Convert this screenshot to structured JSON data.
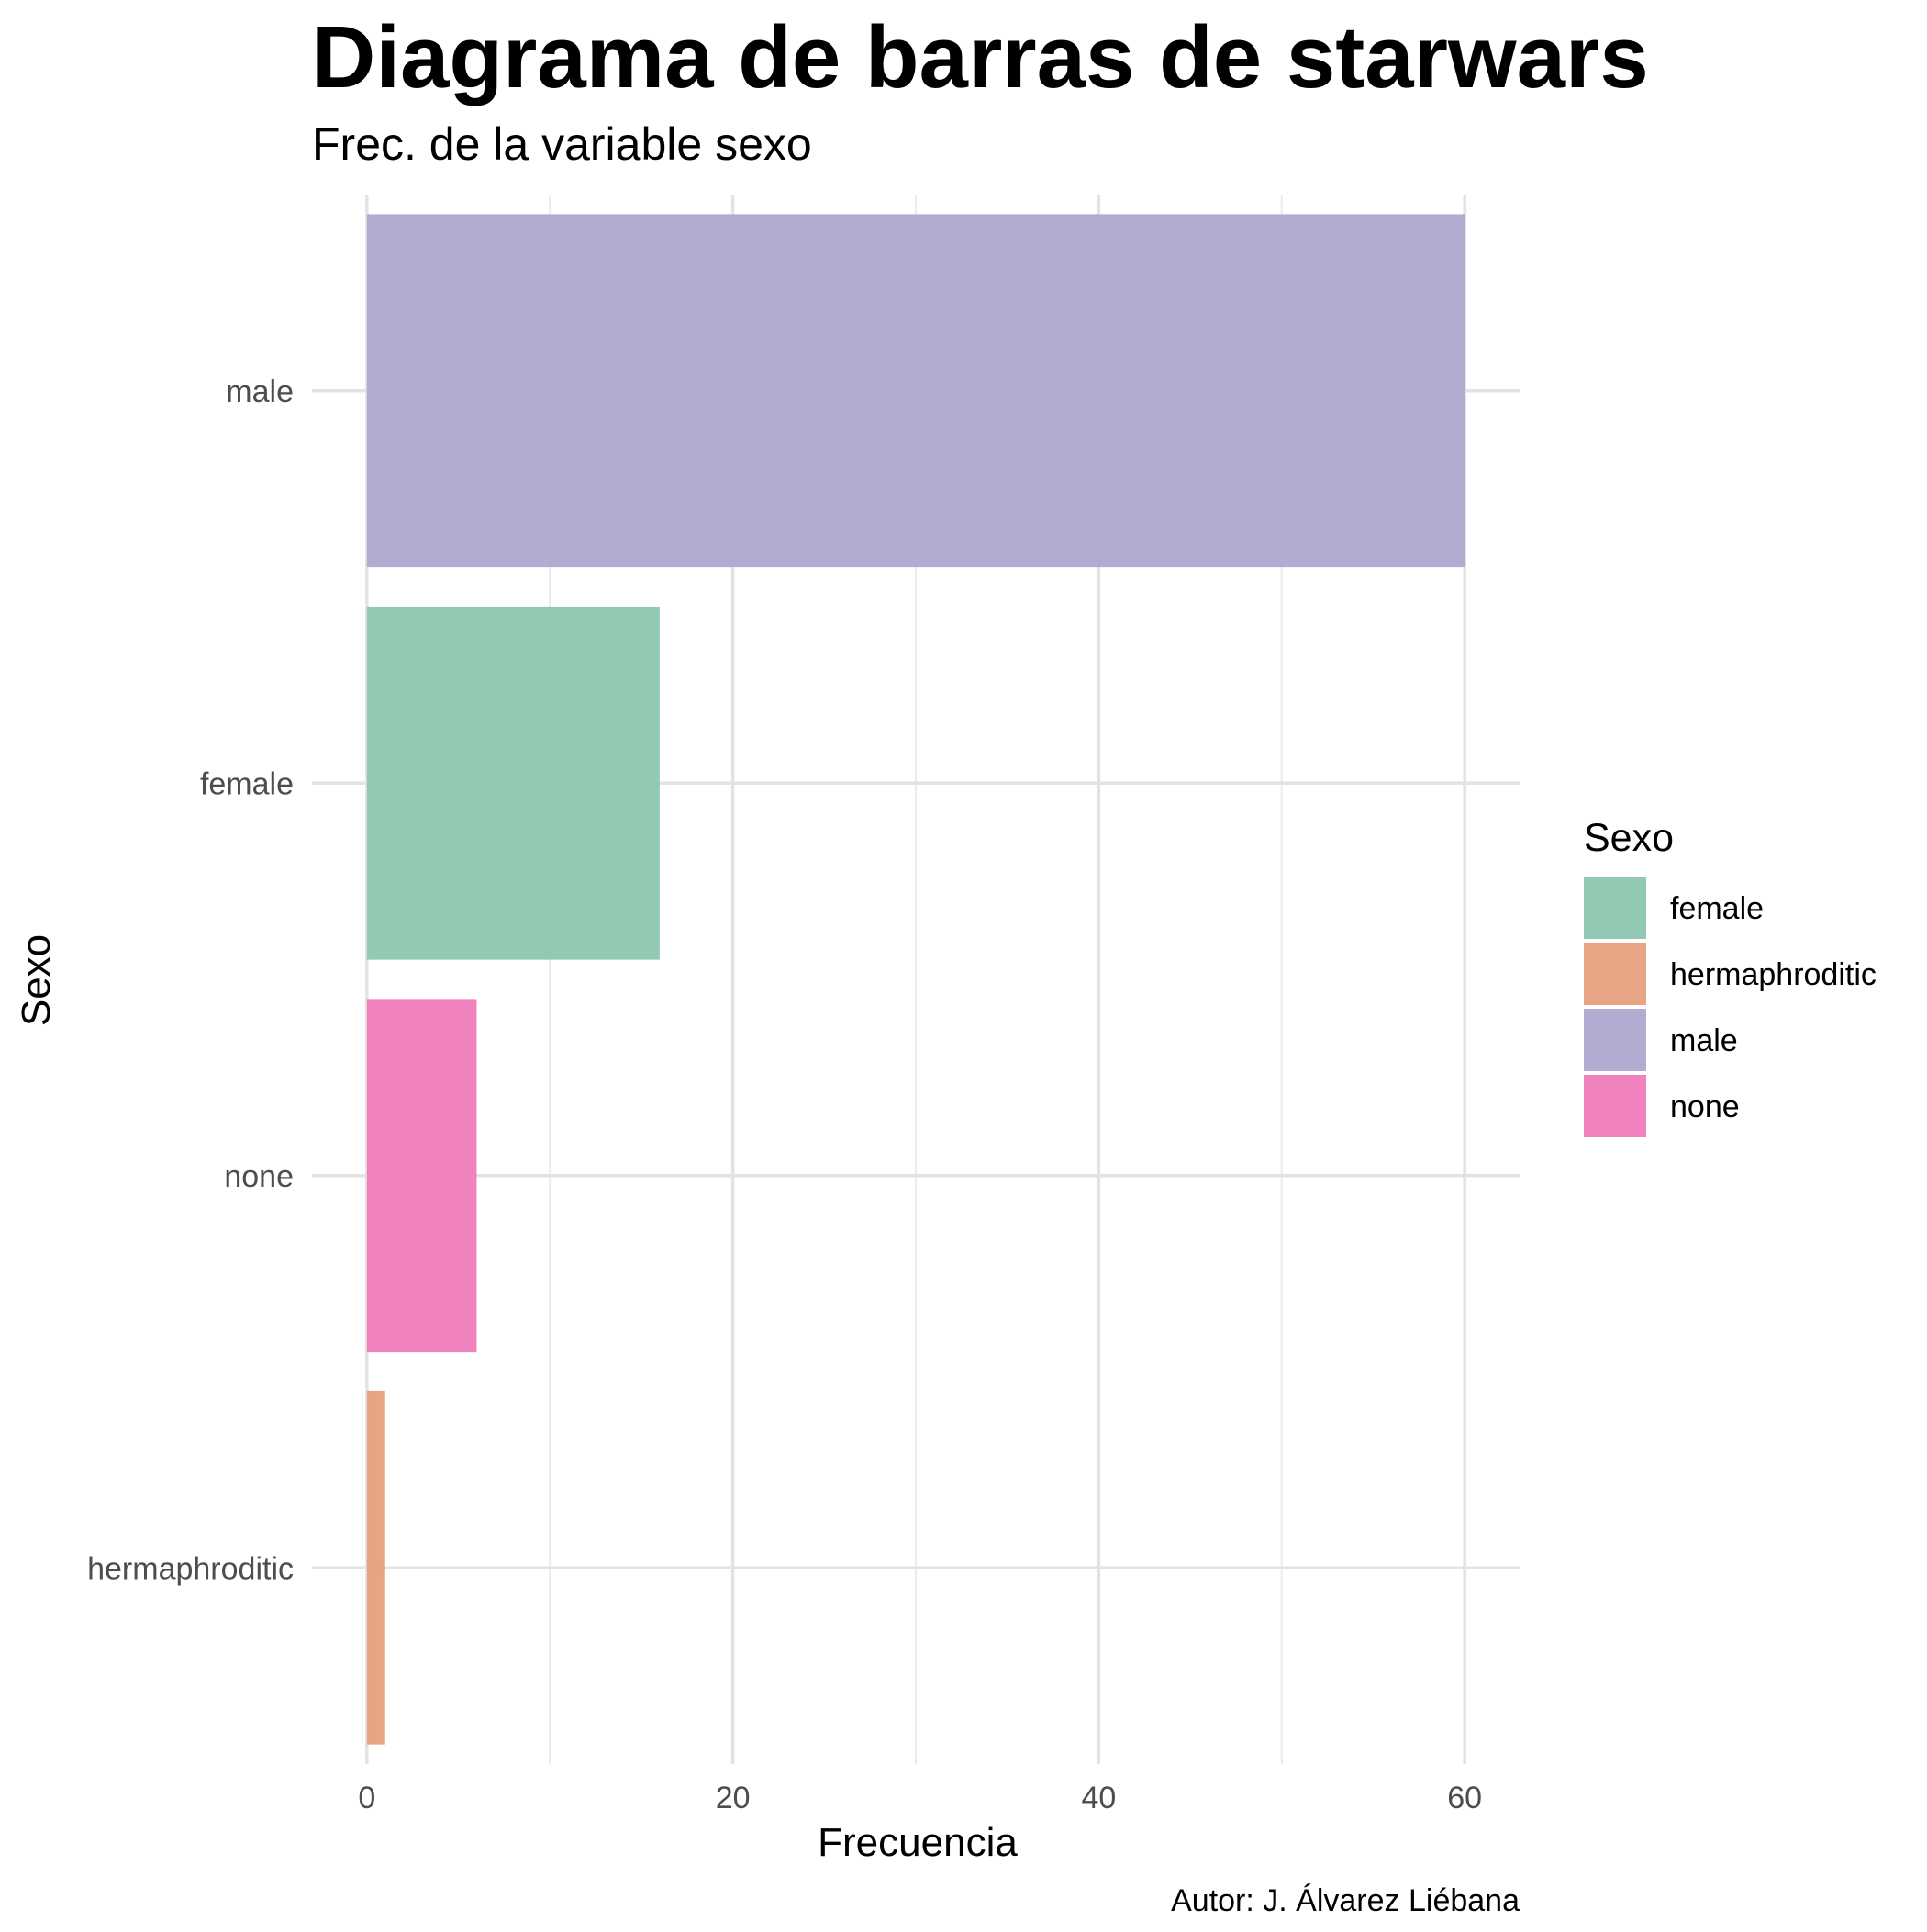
{
  "chart_data": {
    "type": "bar",
    "orientation": "horizontal",
    "title": "Diagrama de barras de starwars",
    "subtitle": "Frec. de la variable sexo",
    "xlabel": "Frecuencia",
    "ylabel": "Sexo",
    "caption": "Autor: J. Álvarez Liébana",
    "categories": [
      "male",
      "female",
      "none",
      "hermaphroditic"
    ],
    "values": [
      60,
      16,
      6,
      1
    ],
    "colors": [
      "#ada8cf",
      "#8cc6ae",
      "#ef7cb9",
      "#e6a07f"
    ],
    "xlim": [
      -3,
      63
    ],
    "x_ticks": [
      0,
      20,
      40,
      60
    ],
    "x_tick_labels": [
      "0",
      "20",
      "40",
      "60"
    ],
    "x_minor_ticks": [
      10,
      30,
      50
    ],
    "grid": true,
    "legend": {
      "title": "Sexo",
      "position": "right",
      "items": [
        {
          "label": "female",
          "color": "#8cc6ae"
        },
        {
          "label": "hermaphroditic",
          "color": "#e6a07f"
        },
        {
          "label": "male",
          "color": "#ada8cf"
        },
        {
          "label": "none",
          "color": "#ef7cb9"
        }
      ]
    }
  }
}
